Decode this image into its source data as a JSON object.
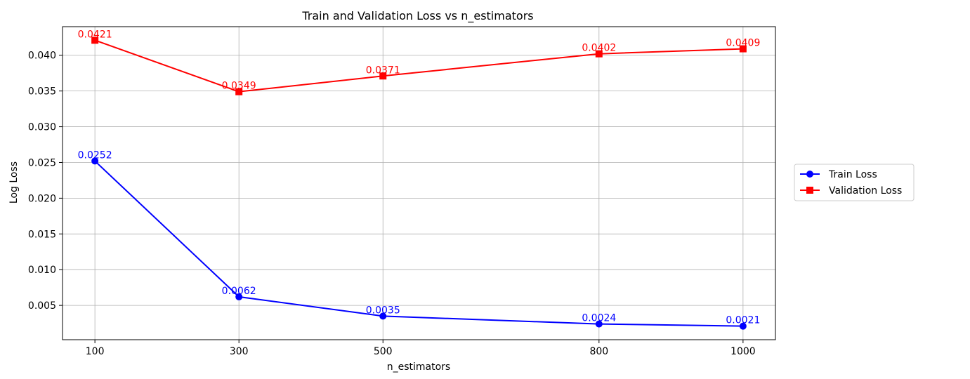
{
  "chart_data": {
    "type": "line",
    "title": "Train and Validation Loss vs n_estimators",
    "xlabel": "n_estimators",
    "ylabel": "Log Loss",
    "x": [
      100,
      300,
      500,
      800,
      1000
    ],
    "xticks": [
      "100",
      "300",
      "500",
      "800",
      "1000"
    ],
    "xlim": [
      55,
      1045
    ],
    "yticks": [
      "0.005",
      "0.010",
      "0.015",
      "0.020",
      "0.025",
      "0.030",
      "0.035",
      "0.040"
    ],
    "ytick_values": [
      0.005,
      0.01,
      0.015,
      0.02,
      0.025,
      0.03,
      0.035,
      0.04
    ],
    "ylim": [
      0.0002,
      0.044
    ],
    "grid": true,
    "legend_position": "right-outside",
    "series": [
      {
        "name": "Train Loss",
        "color": "#0000ff",
        "marker": "circle",
        "values": [
          0.0252,
          0.0062,
          0.0035,
          0.0024,
          0.0021
        ],
        "labels": [
          "0.0252",
          "0.0062",
          "0.0035",
          "0.0024",
          "0.0021"
        ]
      },
      {
        "name": "Validation Loss",
        "color": "#ff0000",
        "marker": "square",
        "values": [
          0.0421,
          0.0349,
          0.0371,
          0.0402,
          0.0409
        ],
        "labels": [
          "0.0421",
          "0.0349",
          "0.0371",
          "0.0402",
          "0.0409"
        ]
      }
    ]
  }
}
